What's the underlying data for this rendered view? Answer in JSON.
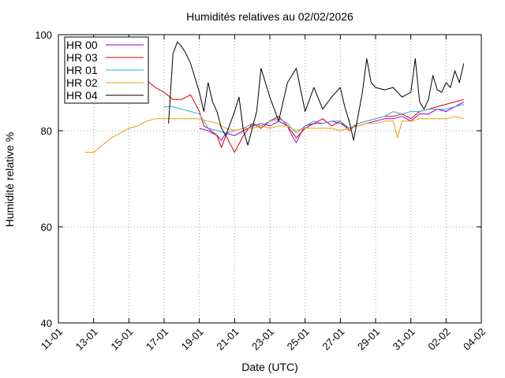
{
  "chart_data": {
    "type": "line",
    "title": "Humidités relatives  au 02/02/2026",
    "xlabel": "Date (UTC)",
    "ylabel": "Humidité relative %",
    "xlim": [
      "2026-01-11",
      "2026-02-04"
    ],
    "ylim": [
      40,
      100
    ],
    "x_ticks": [
      "11-01",
      "13-01",
      "15-01",
      "17-01",
      "19-01",
      "21-01",
      "23-01",
      "25-01",
      "27-01",
      "29-01",
      "31-01",
      "02-02",
      "04-02"
    ],
    "y_ticks": [
      40,
      60,
      80,
      100
    ],
    "grid": true,
    "legend_position": "top-left",
    "series": [
      {
        "name": "HR 00",
        "color": "#9400d3",
        "points": [
          [
            "2026-01-19 00:00",
            80.5
          ],
          [
            "2026-01-19 12:00",
            80.0
          ],
          [
            "2026-01-20 00:00",
            79.0
          ],
          [
            "2026-01-20 06:00",
            78.0
          ],
          [
            "2026-01-20 12:00",
            79.5
          ],
          [
            "2026-01-21 00:00",
            79.0
          ],
          [
            "2026-01-21 12:00",
            80.0
          ],
          [
            "2026-01-22 00:00",
            81.0
          ],
          [
            "2026-01-22 12:00",
            81.5
          ],
          [
            "2026-01-23 00:00",
            81.0
          ],
          [
            "2026-01-23 12:00",
            82.0
          ],
          [
            "2026-01-24 00:00",
            81.0
          ],
          [
            "2026-01-24 06:00",
            79.0
          ],
          [
            "2026-01-24 12:00",
            77.5
          ],
          [
            "2026-01-24 18:00",
            79.5
          ],
          [
            "2026-01-25 00:00",
            81.0
          ],
          [
            "2026-01-25 12:00",
            81.5
          ],
          [
            "2026-01-26 00:00",
            81.5
          ],
          [
            "2026-01-26 12:00",
            82.0
          ],
          [
            "2026-01-27 00:00",
            81.5
          ],
          [
            "2026-01-27 12:00",
            80.5
          ],
          [
            "2026-01-28 00:00",
            81.0
          ],
          [
            "2026-01-28 12:00",
            81.5
          ],
          [
            "2026-01-29 00:00",
            82.0
          ],
          [
            "2026-01-29 12:00",
            82.5
          ],
          [
            "2026-01-30 00:00",
            82.5
          ],
          [
            "2026-01-30 12:00",
            83.0
          ],
          [
            "2026-01-31 00:00",
            82.0
          ],
          [
            "2026-01-31 12:00",
            83.5
          ],
          [
            "2026-02-01 00:00",
            83.5
          ],
          [
            "2026-02-01 12:00",
            84.5
          ],
          [
            "2026-02-02 00:00",
            84.0
          ],
          [
            "2026-02-02 12:00",
            85.0
          ],
          [
            "2026-02-03 00:00",
            86.0
          ]
        ]
      },
      {
        "name": "HR 03",
        "color": "#dd0000",
        "points": [
          [
            "2026-01-16 00:00",
            90.5
          ],
          [
            "2026-01-16 12:00",
            89.0
          ],
          [
            "2026-01-17 00:00",
            88.0
          ],
          [
            "2026-01-17 12:00",
            86.5
          ],
          [
            "2026-01-18 00:00",
            86.5
          ],
          [
            "2026-01-18 12:00",
            87.5
          ],
          [
            "2026-01-19 00:00",
            84.0
          ],
          [
            "2026-01-19 06:00",
            81.0
          ],
          [
            "2026-01-19 12:00",
            80.5
          ],
          [
            "2026-01-20 00:00",
            79.0
          ],
          [
            "2026-01-20 06:00",
            76.5
          ],
          [
            "2026-01-20 12:00",
            79.0
          ],
          [
            "2026-01-21 00:00",
            75.5
          ],
          [
            "2026-01-21 12:00",
            79.0
          ],
          [
            "2026-01-22 00:00",
            81.5
          ],
          [
            "2026-01-22 12:00",
            80.5
          ],
          [
            "2026-01-23 00:00",
            82.0
          ],
          [
            "2026-01-23 12:00",
            83.0
          ],
          [
            "2026-01-24 00:00",
            81.0
          ],
          [
            "2026-01-24 12:00",
            78.5
          ],
          [
            "2026-01-25 00:00",
            80.5
          ],
          [
            "2026-01-25 12:00",
            81.5
          ],
          [
            "2026-01-26 00:00",
            82.5
          ],
          [
            "2026-01-26 12:00",
            81.0
          ],
          [
            "2026-01-27 00:00",
            82.0
          ],
          [
            "2026-01-27 12:00",
            80.0
          ],
          [
            "2026-01-28 00:00",
            81.5
          ],
          [
            "2026-01-28 12:00",
            82.0
          ],
          [
            "2026-01-29 00:00",
            82.5
          ],
          [
            "2026-01-29 12:00",
            83.0
          ],
          [
            "2026-01-30 00:00",
            83.0
          ],
          [
            "2026-01-30 12:00",
            83.5
          ],
          [
            "2026-01-31 00:00",
            82.5
          ],
          [
            "2026-01-31 12:00",
            84.0
          ],
          [
            "2026-02-01 00:00",
            84.5
          ],
          [
            "2026-02-01 12:00",
            85.0
          ],
          [
            "2026-02-02 00:00",
            85.5
          ],
          [
            "2026-02-02 12:00",
            86.0
          ],
          [
            "2026-02-03 00:00",
            86.5
          ]
        ]
      },
      {
        "name": "HR 01",
        "color": "#33aadd",
        "points": [
          [
            "2026-01-17 00:00",
            85.0
          ],
          [
            "2026-01-17 12:00",
            85.0
          ],
          [
            "2026-01-18 00:00",
            84.5
          ],
          [
            "2026-01-18 12:00",
            84.0
          ],
          [
            "2026-01-19 00:00",
            83.5
          ],
          [
            "2026-01-19 06:00",
            82.0
          ],
          [
            "2026-01-19 12:00",
            80.5
          ],
          [
            "2026-01-20 00:00",
            80.0
          ],
          [
            "2026-01-20 12:00",
            79.5
          ],
          [
            "2026-01-21 00:00",
            80.0
          ],
          [
            "2026-01-21 12:00",
            80.5
          ],
          [
            "2026-01-22 00:00",
            81.5
          ],
          [
            "2026-01-22 12:00",
            81.0
          ],
          [
            "2026-01-23 00:00",
            82.0
          ],
          [
            "2026-01-23 12:00",
            82.5
          ],
          [
            "2026-01-24 00:00",
            81.5
          ],
          [
            "2026-01-24 12:00",
            79.5
          ],
          [
            "2026-01-25 00:00",
            81.0
          ],
          [
            "2026-01-25 12:00",
            82.0
          ],
          [
            "2026-01-26 00:00",
            81.5
          ],
          [
            "2026-01-26 12:00",
            82.0
          ],
          [
            "2026-01-27 00:00",
            82.0
          ],
          [
            "2026-01-27 12:00",
            80.5
          ],
          [
            "2026-01-28 00:00",
            81.5
          ],
          [
            "2026-01-28 12:00",
            82.0
          ],
          [
            "2026-01-29 00:00",
            82.5
          ],
          [
            "2026-01-29 12:00",
            83.0
          ],
          [
            "2026-01-30 00:00",
            84.0
          ],
          [
            "2026-01-30 12:00",
            83.5
          ],
          [
            "2026-01-31 00:00",
            84.0
          ],
          [
            "2026-01-31 12:00",
            84.0
          ],
          [
            "2026-02-01 00:00",
            84.5
          ],
          [
            "2026-02-01 12:00",
            84.5
          ],
          [
            "2026-02-02 00:00",
            84.5
          ],
          [
            "2026-02-02 12:00",
            85.0
          ],
          [
            "2026-02-03 00:00",
            85.5
          ]
        ]
      },
      {
        "name": "HR 02",
        "color": "#e69f00",
        "points": [
          [
            "2026-01-12 12:00",
            75.5
          ],
          [
            "2026-01-13 00:00",
            75.5
          ],
          [
            "2026-01-13 12:00",
            77.0
          ],
          [
            "2026-01-14 00:00",
            78.5
          ],
          [
            "2026-01-14 12:00",
            79.5
          ],
          [
            "2026-01-15 00:00",
            80.5
          ],
          [
            "2026-01-15 12:00",
            81.0
          ],
          [
            "2026-01-16 00:00",
            82.0
          ],
          [
            "2026-01-16 12:00",
            82.5
          ],
          [
            "2026-01-17 00:00",
            82.5
          ],
          [
            "2026-01-17 12:00",
            82.5
          ],
          [
            "2026-01-18 00:00",
            82.5
          ],
          [
            "2026-01-18 12:00",
            82.5
          ],
          [
            "2026-01-19 00:00",
            82.5
          ],
          [
            "2026-01-19 12:00",
            82.0
          ],
          [
            "2026-01-20 00:00",
            81.5
          ],
          [
            "2026-01-20 12:00",
            80.5
          ],
          [
            "2026-01-21 00:00",
            80.0
          ],
          [
            "2026-01-21 12:00",
            80.5
          ],
          [
            "2026-01-22 00:00",
            80.5
          ],
          [
            "2026-01-22 12:00",
            81.0
          ],
          [
            "2026-01-23 00:00",
            80.5
          ],
          [
            "2026-01-23 12:00",
            81.0
          ],
          [
            "2026-01-24 00:00",
            81.0
          ],
          [
            "2026-01-24 12:00",
            80.0
          ],
          [
            "2026-01-25 00:00",
            80.5
          ],
          [
            "2026-01-25 12:00",
            80.5
          ],
          [
            "2026-01-26 00:00",
            80.5
          ],
          [
            "2026-01-26 12:00",
            80.5
          ],
          [
            "2026-01-27 00:00",
            80.0
          ],
          [
            "2026-01-27 12:00",
            80.5
          ],
          [
            "2026-01-28 00:00",
            81.0
          ],
          [
            "2026-01-28 12:00",
            81.5
          ],
          [
            "2026-01-29 00:00",
            81.5
          ],
          [
            "2026-01-29 12:00",
            82.0
          ],
          [
            "2026-01-30 00:00",
            82.0
          ],
          [
            "2026-01-30 06:00",
            78.5
          ],
          [
            "2026-01-30 12:00",
            82.0
          ],
          [
            "2026-01-31 00:00",
            82.0
          ],
          [
            "2026-01-31 12:00",
            82.5
          ],
          [
            "2026-02-01 00:00",
            82.5
          ],
          [
            "2026-02-01 12:00",
            82.5
          ],
          [
            "2026-02-02 00:00",
            82.5
          ],
          [
            "2026-02-02 12:00",
            83.0
          ],
          [
            "2026-02-03 00:00",
            82.5
          ]
        ]
      },
      {
        "name": "HR 04",
        "color": "#000000",
        "points": [
          [
            "2026-01-17 06:00",
            81.5
          ],
          [
            "2026-01-17 12:00",
            96.0
          ],
          [
            "2026-01-17 18:00",
            98.5
          ],
          [
            "2026-01-18 00:00",
            97.5
          ],
          [
            "2026-01-18 06:00",
            96.0
          ],
          [
            "2026-01-18 12:00",
            94.0
          ],
          [
            "2026-01-18 18:00",
            91.0
          ],
          [
            "2026-01-19 00:00",
            88.0
          ],
          [
            "2026-01-19 06:00",
            84.0
          ],
          [
            "2026-01-19 12:00",
            90.0
          ],
          [
            "2026-01-19 18:00",
            86.0
          ],
          [
            "2026-01-20 00:00",
            84.0
          ],
          [
            "2026-01-20 06:00",
            80.5
          ],
          [
            "2026-01-20 12:00",
            79.0
          ],
          [
            "2026-01-21 00:00",
            84.0
          ],
          [
            "2026-01-21 06:00",
            87.0
          ],
          [
            "2026-01-21 12:00",
            80.0
          ],
          [
            "2026-01-21 18:00",
            77.0
          ],
          [
            "2026-01-22 00:00",
            80.5
          ],
          [
            "2026-01-22 06:00",
            84.0
          ],
          [
            "2026-01-22 12:00",
            93.0
          ],
          [
            "2026-01-22 18:00",
            90.0
          ],
          [
            "2026-01-23 00:00",
            87.0
          ],
          [
            "2026-01-23 12:00",
            82.0
          ],
          [
            "2026-01-24 00:00",
            90.0
          ],
          [
            "2026-01-24 12:00",
            93.0
          ],
          [
            "2026-01-25 00:00",
            84.0
          ],
          [
            "2026-01-25 12:00",
            89.0
          ],
          [
            "2026-01-26 00:00",
            84.5
          ],
          [
            "2026-01-26 12:00",
            87.0
          ],
          [
            "2026-01-27 00:00",
            89.0
          ],
          [
            "2026-01-27 06:00",
            85.0
          ],
          [
            "2026-01-27 12:00",
            82.0
          ],
          [
            "2026-01-27 18:00",
            78.0
          ],
          [
            "2026-01-28 00:00",
            83.0
          ],
          [
            "2026-01-28 06:00",
            88.0
          ],
          [
            "2026-01-28 12:00",
            95.0
          ],
          [
            "2026-01-28 18:00",
            90.0
          ],
          [
            "2026-01-29 00:00",
            89.0
          ],
          [
            "2026-01-29 12:00",
            88.5
          ],
          [
            "2026-01-30 00:00",
            89.0
          ],
          [
            "2026-01-30 12:00",
            87.0
          ],
          [
            "2026-01-31 00:00",
            88.0
          ],
          [
            "2026-01-31 06:00",
            95.0
          ],
          [
            "2026-01-31 12:00",
            86.0
          ],
          [
            "2026-01-31 18:00",
            84.5
          ],
          [
            "2026-02-01 00:00",
            86.5
          ],
          [
            "2026-02-01 06:00",
            91.5
          ],
          [
            "2026-02-01 12:00",
            88.5
          ],
          [
            "2026-02-01 18:00",
            88.0
          ],
          [
            "2026-02-02 00:00",
            90.0
          ],
          [
            "2026-02-02 06:00",
            89.0
          ],
          [
            "2026-02-02 12:00",
            92.5
          ],
          [
            "2026-02-02 18:00",
            90.0
          ],
          [
            "2026-02-03 00:00",
            94.0
          ]
        ]
      }
    ]
  }
}
